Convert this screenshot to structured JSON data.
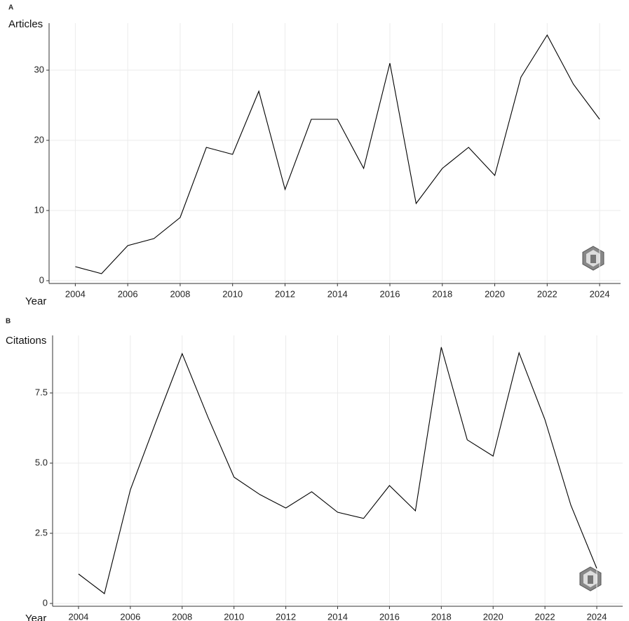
{
  "chart_data": [
    {
      "type": "line",
      "panel": "A",
      "ylabel": "Articles",
      "xlabel": "Year",
      "x": [
        2004,
        2005,
        2006,
        2007,
        2008,
        2009,
        2010,
        2011,
        2012,
        2013,
        2014,
        2015,
        2016,
        2017,
        2018,
        2019,
        2020,
        2021,
        2022,
        2023,
        2024
      ],
      "values": [
        2,
        1,
        5,
        6,
        9,
        19,
        18,
        27,
        13,
        23,
        23,
        16,
        31,
        11,
        16,
        19,
        15,
        29,
        35,
        28,
        23
      ],
      "color": "#000000",
      "xlim": [
        2003,
        2024.8
      ],
      "xticks": [
        2004,
        2006,
        2008,
        2010,
        2012,
        2014,
        2016,
        2018,
        2020,
        2022,
        2024
      ],
      "ylim": [
        -0.4,
        36.7
      ],
      "yticks": [
        0,
        10,
        20,
        30
      ],
      "grid": true
    },
    {
      "type": "line",
      "panel": "B",
      "ylabel": "Citations",
      "xlabel": "Year",
      "x": [
        2004,
        2005,
        2006,
        2007,
        2008,
        2009,
        2010,
        2011,
        2012,
        2013,
        2014,
        2015,
        2016,
        2017,
        2018,
        2019,
        2020,
        2021,
        2022,
        2023,
        2024
      ],
      "values": [
        1.05,
        0.35,
        4.05,
        6.5,
        8.9,
        6.63,
        4.5,
        3.88,
        3.4,
        3.98,
        3.25,
        3.03,
        4.2,
        3.3,
        9.13,
        5.83,
        5.25,
        8.93,
        6.55,
        3.5,
        1.25
      ],
      "color": "#000000",
      "xlim": [
        2003,
        2025
      ],
      "xticks": [
        2004,
        2006,
        2008,
        2010,
        2012,
        2014,
        2016,
        2018,
        2020,
        2022,
        2024
      ],
      "ylim": [
        -0.1,
        9.55
      ],
      "yticks": [
        0,
        2.5,
        {
          "value": 5,
          "label": "5.0"
        },
        7.5
      ],
      "grid": true
    }
  ]
}
